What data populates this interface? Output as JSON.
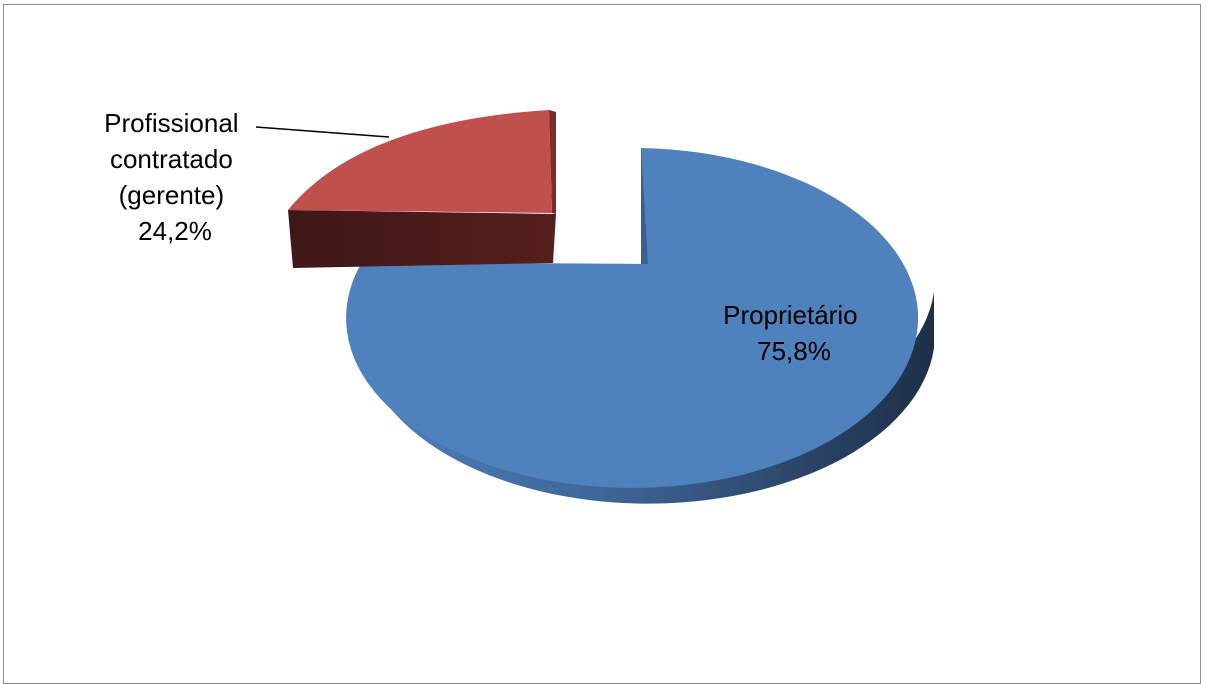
{
  "chart_data": {
    "type": "pie",
    "style": "3d-exploded",
    "title": "",
    "slices": [
      {
        "label_lines": [
          "Proprietário"
        ],
        "value_label": "75,8%",
        "value": 75.8,
        "color": "#4f81bd",
        "side_color": "#3a6396"
      },
      {
        "label_lines": [
          "Profissional",
          "contratado",
          "(gerente)"
        ],
        "value_label": "24,2%",
        "value": 24.2,
        "color": "#c0504d",
        "side_color": "#4f1f1e"
      }
    ],
    "legend": "none"
  }
}
